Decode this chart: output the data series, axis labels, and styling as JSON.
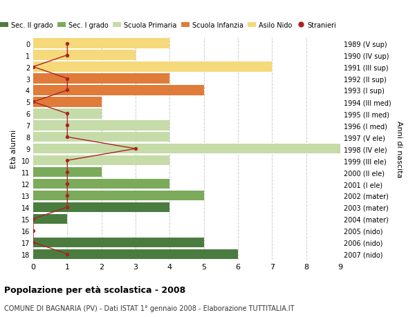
{
  "ages": [
    18,
    17,
    16,
    15,
    14,
    13,
    12,
    11,
    10,
    9,
    8,
    7,
    6,
    5,
    4,
    3,
    2,
    1,
    0
  ],
  "right_labels": [
    "1989 (V sup)",
    "1990 (IV sup)",
    "1991 (III sup)",
    "1992 (II sup)",
    "1993 (I sup)",
    "1994 (III med)",
    "1995 (II med)",
    "1996 (I med)",
    "1997 (V ele)",
    "1998 (IV ele)",
    "1999 (III ele)",
    "2000 (II ele)",
    "2001 (I ele)",
    "2002 (mater)",
    "2003 (mater)",
    "2004 (mater)",
    "2005 (nido)",
    "2006 (nido)",
    "2007 (nido)"
  ],
  "bar_values": [
    6,
    5,
    0,
    1,
    4,
    5,
    4,
    2,
    4,
    9,
    4,
    4,
    2,
    2,
    5,
    4,
    7,
    3,
    4
  ],
  "bar_colors": [
    "#4a7c3f",
    "#4a7c3f",
    "#4a7c3f",
    "#4a7c3f",
    "#4a7c3f",
    "#7aaa5a",
    "#7aaa5a",
    "#7aaa5a",
    "#c5dba8",
    "#c5dba8",
    "#c5dba8",
    "#c5dba8",
    "#c5dba8",
    "#e07b39",
    "#e07b39",
    "#e07b39",
    "#f5d97a",
    "#f5d97a",
    "#f5d97a"
  ],
  "stranieri_values": [
    1,
    0,
    0,
    0,
    1,
    1,
    1,
    1,
    1,
    3,
    1,
    1,
    1,
    0,
    1,
    1,
    0,
    1,
    1
  ],
  "title": "Popolazione per età scolastica - 2008",
  "subtitle": "COMUNE DI BAGNARIA (PV) - Dati ISTAT 1° gennaio 2008 - Elaborazione TUTTITALIA.IT",
  "ylabel": "Età alunni",
  "right_ylabel": "Anni di nascita",
  "xlim": [
    0,
    9
  ],
  "legend_labels": [
    "Sec. II grado",
    "Sec. I grado",
    "Scuola Primaria",
    "Scuola Infanzia",
    "Asilo Nido",
    "Stranieri"
  ],
  "legend_colors": [
    "#4a7c3f",
    "#7aaa5a",
    "#c5dba8",
    "#e07b39",
    "#f5d97a",
    "#aa2222"
  ],
  "color_stranieri": "#aa2222",
  "grid_color": "#cccccc"
}
